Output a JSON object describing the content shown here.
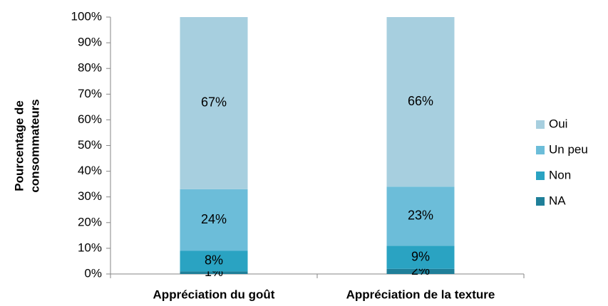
{
  "chart_data": {
    "type": "stacked_bar",
    "y_label": [
      "Pourcentage de",
      "consommateurs"
    ],
    "categories": [
      "Appréciation du goût",
      "Appréciation de la texture"
    ],
    "series": [
      {
        "name": "NA",
        "color": "#1f7f99",
        "values": [
          1,
          2
        ],
        "value_labels": [
          "1%",
          "2%"
        ]
      },
      {
        "name": "Non",
        "color": "#2aa3c2",
        "values": [
          8,
          9
        ],
        "value_labels": [
          "8%",
          "9%"
        ]
      },
      {
        "name": "Un peu",
        "color": "#6cbdd9",
        "values": [
          24,
          23
        ],
        "value_labels": [
          "24%",
          "23%"
        ]
      },
      {
        "name": "Oui",
        "color": "#a7cfdf",
        "values": [
          67,
          66
        ],
        "value_labels": [
          "67%",
          "66%"
        ]
      }
    ],
    "ylim": [
      0,
      100
    ],
    "yticks": [
      {
        "value": 0,
        "label": "0%"
      },
      {
        "value": 10,
        "label": "10%"
      },
      {
        "value": 20,
        "label": "20%"
      },
      {
        "value": 30,
        "label": "30%"
      },
      {
        "value": 40,
        "label": "40%"
      },
      {
        "value": 50,
        "label": "50%"
      },
      {
        "value": 60,
        "label": "60%"
      },
      {
        "value": 70,
        "label": "70%"
      },
      {
        "value": 80,
        "label": "80%"
      },
      {
        "value": 90,
        "label": "90%"
      },
      {
        "value": 100,
        "label": "100%"
      }
    ],
    "legend": "right"
  }
}
